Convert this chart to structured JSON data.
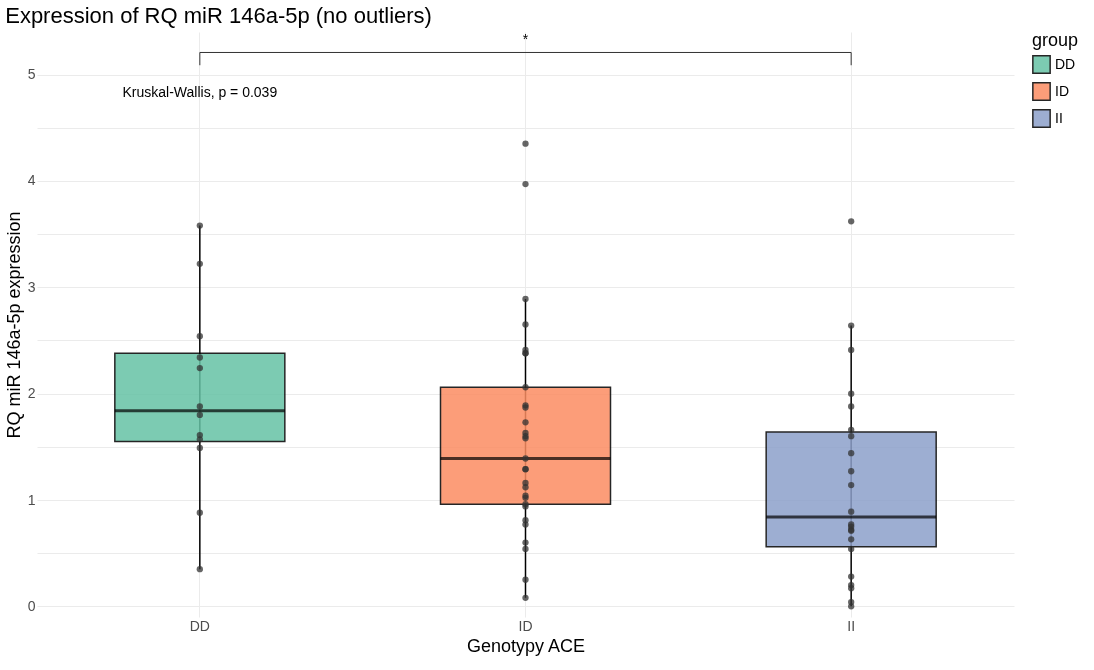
{
  "chart_data": {
    "type": "box",
    "title": "Expression of RQ miR 146a-5p (no outliers)",
    "xlabel": "Genotypy ACE",
    "ylabel": "RQ miR 146a-5p expression",
    "legend_title": "group",
    "categories": [
      "DD",
      "ID",
      "II"
    ],
    "series": [
      {
        "name": "DD",
        "color": "#66c2a5",
        "x": [
          "DD"
        ],
        "boxes": [
          {
            "low": 0.35,
            "q1": 1.55,
            "median": 1.84,
            "q3": 2.38,
            "high": 3.58
          }
        ]
      },
      {
        "name": "ID",
        "color": "#fc8d62",
        "x": [
          "ID"
        ],
        "boxes": [
          {
            "low": 0.08,
            "q1": 0.96,
            "median": 1.39,
            "q3": 2.06,
            "high": 2.89
          }
        ]
      },
      {
        "name": "II",
        "color": "#8da0cb",
        "x": [
          "II"
        ],
        "boxes": [
          {
            "low": 0.0,
            "q1": 0.56,
            "median": 0.84,
            "q3": 1.64,
            "high": 2.64
          }
        ]
      },
      {
        "type": "scatter",
        "color": "#333333",
        "x": [
          "DD",
          "DD",
          "DD",
          "DD",
          "DD",
          "DD",
          "DD",
          "DD",
          "DD",
          "DD",
          "DD",
          "DD",
          "ID",
          "ID",
          "ID",
          "ID",
          "ID",
          "ID",
          "ID",
          "ID",
          "ID",
          "ID",
          "ID",
          "ID",
          "ID",
          "ID",
          "ID",
          "ID",
          "ID",
          "ID",
          "ID",
          "ID",
          "ID",
          "ID",
          "ID",
          "ID",
          "ID",
          "ID",
          "ID",
          "ID",
          "ID",
          "II",
          "II",
          "II",
          "II",
          "II",
          "II",
          "II",
          "II",
          "II",
          "II",
          "II",
          "II",
          "II",
          "II",
          "II",
          "II",
          "II",
          "II",
          "II",
          "II",
          "II",
          "II"
        ],
        "values": [
          3.58,
          3.22,
          2.54,
          2.34,
          2.24,
          1.88,
          1.8,
          1.61,
          1.57,
          1.49,
          0.88,
          0.35,
          4.35,
          3.97,
          2.89,
          2.65,
          2.38,
          2.38,
          2.41,
          2.06,
          1.87,
          1.89,
          1.73,
          1.63,
          1.6,
          1.58,
          1.39,
          1.29,
          1.16,
          1.12,
          1.04,
          1.02,
          0.96,
          0.94,
          0.81,
          0.77,
          0.6,
          0.54,
          0.25,
          0.08,
          1.29,
          3.62,
          2.64,
          2.41,
          2.0,
          1.88,
          1.66,
          1.6,
          1.44,
          1.27,
          1.14,
          0.89,
          0.77,
          0.75,
          0.72,
          0.71,
          0.63,
          0.54,
          0.28,
          0.2,
          0.17,
          0.04,
          0.0
        ]
      }
    ],
    "annotations": [
      "*",
      "Kruskal-Wallis, p = 0.039"
    ],
    "ylim": [
      -0.1,
      5.4
    ],
    "yticks": [
      0,
      {
        "value": 0.5,
        "label": null
      },
      1,
      {
        "value": 1.5,
        "label": null
      },
      2,
      {
        "value": 2.5,
        "label": null
      },
      3,
      {
        "value": 3.5,
        "label": null
      },
      4,
      {
        "value": 4.5,
        "label": null
      },
      5
    ],
    "grid": true,
    "legend": "right",
    "marker": "circle"
  }
}
